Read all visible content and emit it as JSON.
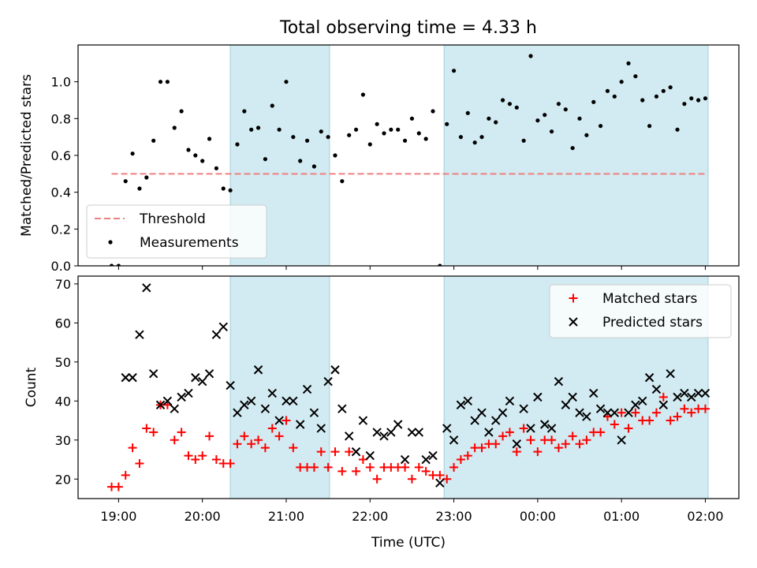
{
  "chart_data": [
    {
      "type": "scatter",
      "title": "Total observing time = 4.33 h",
      "ylabel": "Matched/Predicted stars",
      "xlim": [
        "18:31",
        "02:24"
      ],
      "ylim": [
        0,
        1.2
      ],
      "yticks": [
        0.0,
        0.2,
        0.4,
        0.6,
        0.8,
        1.0
      ],
      "ytick_labels": [
        "0.0",
        "0.2",
        "0.4",
        "0.6",
        "0.8",
        "1.0"
      ],
      "shaded_spans": [
        [
          "20:20",
          "21:31"
        ],
        [
          "22:53",
          "02:02"
        ]
      ],
      "shade_color": "#add8e6",
      "legend_location": "lower left",
      "series": [
        {
          "name": "Threshold",
          "kind": "dashed-line",
          "color": "#f08080",
          "x": [
            "18:55",
            "02:00"
          ],
          "y": [
            0.5,
            0.5
          ]
        },
        {
          "name": "Measurements",
          "kind": "points",
          "color": "#000000",
          "x": [
            "18:55",
            "19:00",
            "19:05",
            "19:10",
            "19:15",
            "19:20",
            "19:25",
            "19:30",
            "19:35",
            "19:40",
            "19:45",
            "19:50",
            "19:55",
            "20:00",
            "20:05",
            "20:10",
            "20:15",
            "20:20",
            "20:25",
            "20:30",
            "20:35",
            "20:40",
            "20:45",
            "20:50",
            "20:55",
            "21:00",
            "21:05",
            "21:10",
            "21:15",
            "21:20",
            "21:25",
            "21:30",
            "21:35",
            "21:40",
            "21:45",
            "21:50",
            "21:55",
            "22:00",
            "22:05",
            "22:10",
            "22:15",
            "22:20",
            "22:25",
            "22:30",
            "22:35",
            "22:40",
            "22:45",
            "22:50",
            "22:55",
            "23:00",
            "23:05",
            "23:10",
            "23:15",
            "23:20",
            "23:25",
            "23:30",
            "23:35",
            "23:40",
            "23:45",
            "23:50",
            "23:55",
            "00:00",
            "00:05",
            "00:10",
            "00:15",
            "00:20",
            "00:25",
            "00:30",
            "00:35",
            "00:40",
            "00:45",
            "00:50",
            "00:55",
            "01:00",
            "01:05",
            "01:10",
            "01:15",
            "01:20",
            "01:25",
            "01:30",
            "01:35",
            "01:40",
            "01:45",
            "01:50",
            "01:55",
            "02:00"
          ],
          "y": [
            0.0,
            0.0,
            0.46,
            0.61,
            0.42,
            0.48,
            0.68,
            1.0,
            1.0,
            0.75,
            0.84,
            0.63,
            0.6,
            0.57,
            0.69,
            0.53,
            0.42,
            0.41,
            0.66,
            0.84,
            0.74,
            0.75,
            0.58,
            0.87,
            0.74,
            1.0,
            0.7,
            0.57,
            0.68,
            0.54,
            0.73,
            0.7,
            0.6,
            0.46,
            0.71,
            0.74,
            0.93,
            0.66,
            0.77,
            0.72,
            0.74,
            0.74,
            0.68,
            0.8,
            0.72,
            0.69,
            0.84,
            0.0,
            0.77,
            1.06,
            0.7,
            0.83,
            0.67,
            0.7,
            0.8,
            0.78,
            0.9,
            0.88,
            0.86,
            0.68,
            1.14,
            0.79,
            0.82,
            0.73,
            0.88,
            0.85,
            0.64,
            0.8,
            0.71,
            0.89,
            0.76,
            0.95,
            0.92,
            1.0,
            1.1,
            1.03,
            0.9,
            0.76,
            0.92,
            0.95,
            0.97,
            0.74,
            0.88,
            0.91,
            0.9,
            0.91
          ]
        }
      ]
    },
    {
      "type": "scatter",
      "xlabel": "Time (UTC)",
      "ylabel": "Count",
      "xlim": [
        "18:31",
        "02:24"
      ],
      "ylim": [
        15,
        72
      ],
      "xticks": [
        "19:00",
        "20:00",
        "21:00",
        "22:00",
        "23:00",
        "00:00",
        "01:00",
        "02:00"
      ],
      "yticks": [
        20,
        30,
        40,
        50,
        60,
        70
      ],
      "ytick_labels": [
        "20",
        "30",
        "40",
        "50",
        "60",
        "70"
      ],
      "shaded_spans": [
        [
          "20:20",
          "21:31"
        ],
        [
          "22:53",
          "02:02"
        ]
      ],
      "shade_color": "#add8e6",
      "legend_location": "upper right",
      "series": [
        {
          "name": "Matched stars",
          "marker": "plus",
          "color": "#ff0000",
          "x": [
            "18:55",
            "19:00",
            "19:05",
            "19:10",
            "19:15",
            "19:20",
            "19:25",
            "19:30",
            "19:35",
            "19:40",
            "19:45",
            "19:50",
            "19:55",
            "20:00",
            "20:05",
            "20:10",
            "20:15",
            "20:20",
            "20:25",
            "20:30",
            "20:35",
            "20:40",
            "20:45",
            "20:50",
            "20:55",
            "21:00",
            "21:05",
            "21:10",
            "21:15",
            "21:20",
            "21:25",
            "21:30",
            "21:35",
            "21:40",
            "21:45",
            "21:50",
            "21:55",
            "22:00",
            "22:05",
            "22:10",
            "22:15",
            "22:20",
            "22:25",
            "22:30",
            "22:35",
            "22:40",
            "22:45",
            "22:50",
            "22:55",
            "23:00",
            "23:05",
            "23:10",
            "23:15",
            "23:20",
            "23:25",
            "23:30",
            "23:35",
            "23:40",
            "23:45",
            "23:50",
            "23:55",
            "00:00",
            "00:05",
            "00:10",
            "00:15",
            "00:20",
            "00:25",
            "00:30",
            "00:35",
            "00:40",
            "00:45",
            "00:50",
            "00:55",
            "01:00",
            "01:05",
            "01:10",
            "01:15",
            "01:20",
            "01:25",
            "01:30",
            "01:35",
            "01:40",
            "01:45",
            "01:50",
            "01:55",
            "02:00"
          ],
          "y": [
            18,
            18,
            21,
            28,
            24,
            33,
            32,
            39,
            39,
            30,
            32,
            26,
            25,
            26,
            31,
            25,
            24,
            24,
            29,
            31,
            29,
            30,
            28,
            33,
            31,
            35,
            28,
            23,
            23,
            23,
            27,
            23,
            27,
            22,
            27,
            22,
            25,
            23,
            20,
            23,
            23,
            23,
            23,
            20,
            23,
            22,
            21,
            21,
            20,
            23,
            25,
            26,
            28,
            28,
            29,
            29,
            31,
            32,
            27,
            33,
            30,
            27,
            30,
            30,
            28,
            29,
            31,
            29,
            30,
            32,
            32,
            36,
            34,
            37,
            33,
            37,
            35,
            35,
            37,
            41,
            35,
            36,
            38,
            37,
            38,
            38
          ]
        },
        {
          "name": "Predicted stars",
          "marker": "x",
          "color": "#000000",
          "x": [
            "18:55",
            "19:00",
            "19:05",
            "19:10",
            "19:15",
            "19:20",
            "19:25",
            "19:30",
            "19:35",
            "19:40",
            "19:45",
            "19:50",
            "19:55",
            "20:00",
            "20:05",
            "20:10",
            "20:15",
            "20:20",
            "20:25",
            "20:30",
            "20:35",
            "20:40",
            "20:45",
            "20:50",
            "20:55",
            "21:00",
            "21:05",
            "21:10",
            "21:15",
            "21:20",
            "21:25",
            "21:30",
            "21:35",
            "21:40",
            "21:45",
            "21:50",
            "21:55",
            "22:00",
            "22:05",
            "22:10",
            "22:15",
            "22:20",
            "22:25",
            "22:30",
            "22:35",
            "22:40",
            "22:45",
            "22:50",
            "22:55",
            "23:00",
            "23:05",
            "23:10",
            "23:15",
            "23:20",
            "23:25",
            "23:30",
            "23:35",
            "23:40",
            "23:45",
            "23:50",
            "23:55",
            "00:00",
            "00:05",
            "00:10",
            "00:15",
            "00:20",
            "00:25",
            "00:30",
            "00:35",
            "00:40",
            "00:45",
            "00:50",
            "00:55",
            "01:00",
            "01:05",
            "01:10",
            "01:15",
            "01:20",
            "01:25",
            "01:30",
            "01:35",
            "01:40",
            "01:45",
            "01:50",
            "01:55",
            "02:00"
          ],
          "y": [
            null,
            null,
            46,
            46,
            57,
            69,
            47,
            39,
            40,
            38,
            41,
            42,
            46,
            45,
            47,
            57,
            59,
            44,
            37,
            39,
            40,
            48,
            38,
            42,
            35,
            40,
            40,
            34,
            43,
            37,
            33,
            45,
            48,
            38,
            31,
            27,
            35,
            26,
            32,
            31,
            32,
            34,
            25,
            32,
            32,
            25,
            26,
            19,
            33,
            30,
            39,
            40,
            35,
            37,
            32,
            35,
            37,
            40,
            29,
            38,
            33,
            41,
            34,
            33,
            45,
            39,
            41,
            37,
            36,
            42,
            38,
            37,
            37,
            30,
            37,
            39,
            40,
            46,
            43,
            39,
            47,
            41,
            42,
            41,
            42,
            42
          ]
        }
      ]
    }
  ]
}
